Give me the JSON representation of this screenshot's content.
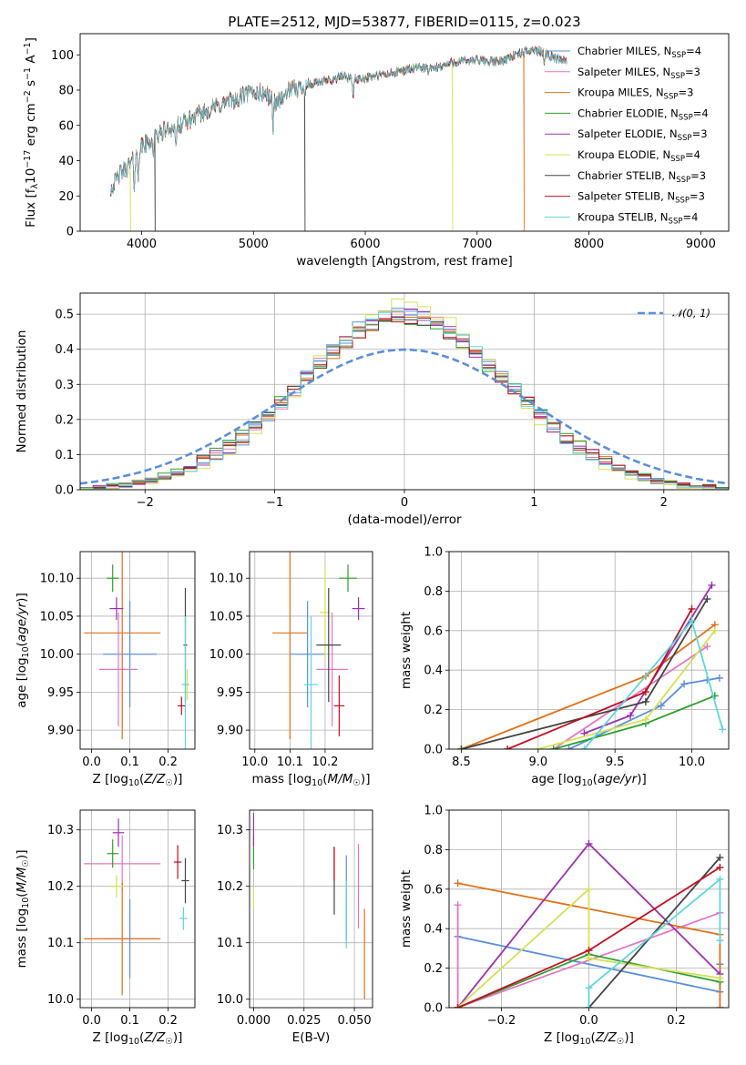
{
  "colors": {
    "Chabrier MILES": "#5b8fdb",
    "Salpeter MILES": "#e377c2",
    "Kroupa MILES": "#e0701a",
    "Chabrier ELODIE": "#2ca02c",
    "Salpeter ELODIE": "#9b30b0",
    "Kroupa ELODIE": "#d4e157",
    "Chabrier STELIB": "#444444",
    "Salpeter STELIB": "#c00f1f",
    "Kroupa STELIB": "#5fd6dc"
  },
  "chart_data": [
    {
      "id": "spectrum",
      "type": "line",
      "title": "PLATE=2512, MJD=53877, FIBERID=0115, z=0.023",
      "xlabel": "wavelength [Angstrom, rest frame]",
      "ylabel": "Flux [f_λ10^-17 erg cm^-2 s^-1 A^-1]",
      "xlim": [
        3450,
        9250
      ],
      "ylim": [
        0,
        112
      ],
      "xticks": [
        4000,
        5000,
        6000,
        7000,
        8000,
        9000
      ],
      "yticks": [
        0,
        20,
        40,
        60,
        80,
        100
      ],
      "grid": false,
      "legend_position": "right",
      "legend": [
        {
          "label": "Chabrier MILES, N",
          "sub": "SSP",
          "suffix": "=4"
        },
        {
          "label": "Salpeter MILES, N",
          "sub": "SSP",
          "suffix": "=3"
        },
        {
          "label": "Kroupa MILES, N",
          "sub": "SSP",
          "suffix": "=3"
        },
        {
          "label": "Chabrier ELODIE, N",
          "sub": "SSP",
          "suffix": "=4"
        },
        {
          "label": "Salpeter ELODIE, N",
          "sub": "SSP",
          "suffix": "=3"
        },
        {
          "label": "Kroupa ELODIE, N",
          "sub": "SSP",
          "suffix": "=4"
        },
        {
          "label": "Chabrier STELIB, N",
          "sub": "SSP",
          "suffix": "=3"
        },
        {
          "label": "Salpeter STELIB, N",
          "sub": "SSP",
          "suffix": "=3"
        },
        {
          "label": "Kroupa STELIB, N",
          "sub": "SSP",
          "suffix": "=4"
        }
      ],
      "continuum_knots": [
        [
          3720,
          24
        ],
        [
          3800,
          32
        ],
        [
          3900,
          38
        ],
        [
          4000,
          48
        ],
        [
          4100,
          52
        ],
        [
          4200,
          57
        ],
        [
          4400,
          62
        ],
        [
          4600,
          69
        ],
        [
          4800,
          74
        ],
        [
          5000,
          79
        ],
        [
          5100,
          78
        ],
        [
          5200,
          73
        ],
        [
          5300,
          79
        ],
        [
          5500,
          83
        ],
        [
          5700,
          86
        ],
        [
          5800,
          88
        ],
        [
          5900,
          86
        ],
        [
          6000,
          87
        ],
        [
          6200,
          89
        ],
        [
          6400,
          92
        ],
        [
          6560,
          93
        ],
        [
          6600,
          92
        ],
        [
          6800,
          96
        ],
        [
          7000,
          97
        ],
        [
          7200,
          96
        ],
        [
          7300,
          99
        ],
        [
          7500,
          103
        ],
        [
          7600,
          101
        ],
        [
          7700,
          98
        ],
        [
          7800,
          97
        ],
        [
          8000,
          95
        ],
        [
          8200,
          94
        ],
        [
          8500,
          93
        ],
        [
          8800,
          92
        ],
        [
          9000,
          91
        ],
        [
          9200,
          90
        ]
      ],
      "absorption_lines": [
        [
          3934,
          16
        ],
        [
          3969,
          14
        ],
        [
          4102,
          8
        ],
        [
          4305,
          12
        ],
        [
          4340,
          8
        ],
        [
          4861,
          6
        ],
        [
          5175,
          14
        ],
        [
          5270,
          5
        ],
        [
          5892,
          10
        ],
        [
          6563,
          4
        ],
        [
          7600,
          4
        ],
        [
          8542,
          4
        ],
        [
          8662,
          4
        ]
      ],
      "masked_spikes": [
        [
          3900,
          "Kroupa ELODIE"
        ],
        [
          4120,
          "Chabrier STELIB"
        ],
        [
          5460,
          "Chabrier STELIB"
        ],
        [
          6780,
          "Kroupa ELODIE"
        ],
        [
          7420,
          "Kroupa MILES"
        ]
      ]
    },
    {
      "id": "residual-hist",
      "type": "step-histogram",
      "xlabel": "(data-model)/error",
      "ylabel": "Normed distribution",
      "xlim": [
        -2.5,
        2.5
      ],
      "ylim": [
        0,
        0.56
      ],
      "xticks": [
        -2,
        -1,
        0,
        1,
        2
      ],
      "yticks": [
        0.0,
        0.1,
        0.2,
        0.3,
        0.4,
        0.5
      ],
      "grid": true,
      "bin_width": 0.1,
      "reference_curve": {
        "label": "𝒩(0, 1)",
        "mean": 0,
        "sigma": 1,
        "color": "#5b8fdb",
        "style": "dashed"
      },
      "legend_position": "top-right",
      "series_peak": [
        {
          "name": "Chabrier MILES",
          "peak": 0.51
        },
        {
          "name": "Salpeter MILES",
          "peak": 0.5
        },
        {
          "name": "Kroupa MILES",
          "peak": 0.49
        },
        {
          "name": "Chabrier ELODIE",
          "peak": 0.48
        },
        {
          "name": "Salpeter ELODIE",
          "peak": 0.5
        },
        {
          "name": "Kroupa ELODIE",
          "peak": 0.53
        },
        {
          "name": "Chabrier STELIB",
          "peak": 0.49
        },
        {
          "name": "Salpeter STELIB",
          "peak": 0.49
        },
        {
          "name": "Kroupa STELIB",
          "peak": 0.5
        }
      ]
    },
    {
      "id": "age-vs-Z",
      "type": "errorbar",
      "xlabel": "Z [log10(Z/Z☉)]",
      "ylabel": "age  [log10(age/yr)]",
      "xlim": [
        -0.03,
        0.27
      ],
      "ylim": [
        9.875,
        10.135
      ],
      "xticks": [
        0.0,
        0.1,
        0.2
      ],
      "yticks": [
        9.9,
        9.95,
        10.0,
        10.05,
        10.1
      ],
      "grid": true,
      "points": [
        {
          "series": "Chabrier MILES",
          "x": 0.1,
          "xerr": 0.07,
          "y": 10.0,
          "yerr": 0.07
        },
        {
          "series": "Salpeter MILES",
          "x": 0.07,
          "xerr": 0.05,
          "y": 9.98,
          "yerr": 0.075
        },
        {
          "series": "Kroupa MILES",
          "x": 0.08,
          "xerr": 0.1,
          "y": 10.028,
          "yerr": 0.14
        },
        {
          "series": "Chabrier ELODIE",
          "x": 0.055,
          "xerr": 0.015,
          "y": 10.1,
          "yerr": 0.018
        },
        {
          "series": "Salpeter ELODIE",
          "x": 0.065,
          "xerr": 0.018,
          "y": 10.06,
          "yerr": 0.015
        },
        {
          "series": "Kroupa ELODIE",
          "x": 0.25,
          "xerr": 0.005,
          "y": 9.96,
          "yerr": 0.02
        },
        {
          "series": "Chabrier STELIB",
          "x": 0.245,
          "xerr": 0.005,
          "y": 10.012,
          "yerr": 0.075
        },
        {
          "series": "Salpeter STELIB",
          "x": 0.235,
          "xerr": 0.01,
          "y": 9.932,
          "yerr": 0.012
        },
        {
          "series": "Kroupa STELIB",
          "x": 0.245,
          "xerr": 0.01,
          "y": 9.96,
          "yerr": 0.09
        }
      ]
    },
    {
      "id": "age-vs-mass",
      "type": "errorbar",
      "xlabel": "mass [log10(M/M☉)]",
      "ylabel": "",
      "xlim": [
        9.985,
        10.335
      ],
      "ylim": [
        9.875,
        10.135
      ],
      "xticks": [
        10.0,
        10.1,
        10.2
      ],
      "yticks": [
        9.9,
        9.95,
        10.0,
        10.05,
        10.1
      ],
      "grid": true,
      "points": [
        {
          "series": "Chabrier MILES",
          "x": 10.15,
          "xerr": 0.05,
          "y": 10.0,
          "yerr": 0.07
        },
        {
          "series": "Salpeter MILES",
          "x": 10.22,
          "xerr": 0.045,
          "y": 9.98,
          "yerr": 0.075
        },
        {
          "series": "Kroupa MILES",
          "x": 10.1,
          "xerr": 0.05,
          "y": 10.028,
          "yerr": 0.14
        },
        {
          "series": "Chabrier ELODIE",
          "x": 10.265,
          "xerr": 0.025,
          "y": 10.1,
          "yerr": 0.018
        },
        {
          "series": "Salpeter ELODIE",
          "x": 10.295,
          "xerr": 0.018,
          "y": 10.06,
          "yerr": 0.015
        },
        {
          "series": "Kroupa ELODIE",
          "x": 10.2,
          "xerr": 0.015,
          "y": 10.055,
          "yerr": 0.06
        },
        {
          "series": "Chabrier STELIB",
          "x": 10.21,
          "xerr": 0.035,
          "y": 10.012,
          "yerr": 0.075
        },
        {
          "series": "Salpeter STELIB",
          "x": 10.24,
          "xerr": 0.015,
          "y": 9.932,
          "yerr": 0.04
        },
        {
          "series": "Kroupa STELIB",
          "x": 10.16,
          "xerr": 0.02,
          "y": 9.96,
          "yerr": 0.09
        }
      ]
    },
    {
      "id": "massweight-vs-age",
      "type": "line",
      "xlabel": "age  [log10(age/yr)]",
      "ylabel": "mass weight",
      "xlim": [
        8.42,
        10.24
      ],
      "ylim": [
        0,
        1
      ],
      "xticks": [
        8.5,
        9.0,
        9.5,
        10.0
      ],
      "yticks": [
        0.0,
        0.2,
        0.4,
        0.6,
        0.8,
        1.0
      ],
      "grid": true,
      "series": [
        {
          "name": "Chabrier MILES",
          "points": [
            [
              9.2,
              0.0
            ],
            [
              9.8,
              0.22
            ],
            [
              9.95,
              0.33
            ],
            [
              10.1,
              0.35
            ],
            [
              10.18,
              0.36
            ]
          ]
        },
        {
          "name": "Salpeter MILES",
          "points": [
            [
              9.1,
              0.0
            ],
            [
              10.1,
              0.52
            ]
          ]
        },
        {
          "name": "Kroupa MILES",
          "points": [
            [
              8.5,
              0.0
            ],
            [
              9.7,
              0.37
            ],
            [
              10.15,
              0.63
            ]
          ]
        },
        {
          "name": "Chabrier ELODIE",
          "points": [
            [
              9.1,
              0.0
            ],
            [
              9.7,
              0.13
            ],
            [
              10.15,
              0.27
            ]
          ]
        },
        {
          "name": "Salpeter ELODIE",
          "points": [
            [
              9.3,
              0.08
            ],
            [
              9.6,
              0.17
            ],
            [
              10.13,
              0.83
            ]
          ]
        },
        {
          "name": "Kroupa ELODIE",
          "points": [
            [
              9.0,
              0.0
            ],
            [
              9.7,
              0.15
            ],
            [
              10.15,
              0.6
            ]
          ]
        },
        {
          "name": "Chabrier STELIB",
          "points": [
            [
              8.5,
              0.0
            ],
            [
              9.7,
              0.24
            ],
            [
              10.1,
              0.76
            ]
          ]
        },
        {
          "name": "Salpeter STELIB",
          "points": [
            [
              8.8,
              0.0
            ],
            [
              9.7,
              0.29
            ],
            [
              10.0,
              0.71
            ]
          ]
        },
        {
          "name": "Kroupa STELIB",
          "points": [
            [
              9.3,
              0.0
            ],
            [
              10.0,
              0.65
            ],
            [
              10.2,
              0.1
            ]
          ]
        }
      ]
    },
    {
      "id": "mass-vs-Z",
      "type": "errorbar",
      "xlabel": "Z [log10(Z/Z☉)]",
      "ylabel": "mass [log10(M/M☉)]",
      "xlim": [
        -0.03,
        0.27
      ],
      "ylim": [
        9.985,
        10.335
      ],
      "xticks": [
        0.0,
        0.1,
        0.2
      ],
      "yticks": [
        10.0,
        10.1,
        10.2,
        10.3
      ],
      "grid": true,
      "points": [
        {
          "series": "Chabrier MILES",
          "x": 0.1,
          "xerr": 0.07,
          "y": 10.107,
          "yerr": 0.07
        },
        {
          "series": "Salpeter MILES",
          "x": 0.08,
          "xerr": 0.1,
          "y": 10.24,
          "yerr": 0.05
        },
        {
          "series": "Kroupa MILES",
          "x": 0.08,
          "xerr": 0.1,
          "y": 10.107,
          "yerr": 0.1
        },
        {
          "series": "Chabrier ELODIE",
          "x": 0.055,
          "xerr": 0.015,
          "y": 10.258,
          "yerr": 0.025
        },
        {
          "series": "Salpeter ELODIE",
          "x": 0.07,
          "xerr": 0.015,
          "y": 10.295,
          "yerr": 0.025
        },
        {
          "series": "Kroupa ELODIE",
          "x": 0.065,
          "xerr": 0.018,
          "y": 10.2,
          "yerr": 0.02
        },
        {
          "series": "Chabrier STELIB",
          "x": 0.245,
          "xerr": 0.01,
          "y": 10.21,
          "yerr": 0.04
        },
        {
          "series": "Salpeter STELIB",
          "x": 0.225,
          "xerr": 0.01,
          "y": 10.243,
          "yerr": 0.03
        },
        {
          "series": "Kroupa STELIB",
          "x": 0.24,
          "xerr": 0.01,
          "y": 10.143,
          "yerr": 0.02
        }
      ]
    },
    {
      "id": "mass-vs-ebv",
      "type": "errorbar",
      "xlabel": "E(B-V)",
      "ylabel": "",
      "xlim": [
        -0.002,
        0.059
      ],
      "ylim": [
        9.985,
        10.335
      ],
      "xticks": [
        0.0,
        0.025,
        0.05
      ],
      "xtick_labels": [
        "0.000",
        "0.025",
        "0.050"
      ],
      "yticks": [
        10.0,
        10.1,
        10.2,
        10.3
      ],
      "grid": true,
      "points": [
        {
          "series": "Chabrier MILES",
          "x": 0.046,
          "xerr": 0,
          "y": 10.18,
          "yerr": 0.075
        },
        {
          "series": "Salpeter MILES",
          "x": 0.052,
          "xerr": 0,
          "y": 10.2,
          "yerr": 0.075
        },
        {
          "series": "Kroupa MILES",
          "x": 0.055,
          "xerr": 0,
          "y": 10.08,
          "yerr": 0.08
        },
        {
          "series": "Chabrier ELODIE",
          "x": 0.0,
          "xerr": 0,
          "y": 10.26,
          "yerr": 0.03
        },
        {
          "series": "Salpeter ELODIE",
          "x": 0.0,
          "xerr": 0,
          "y": 10.3,
          "yerr": 0.03
        },
        {
          "series": "Kroupa ELODIE",
          "x": 0.0,
          "xerr": 0,
          "y": 10.18,
          "yerr": 0.02
        },
        {
          "series": "Chabrier STELIB",
          "x": 0.04,
          "xerr": 0,
          "y": 10.21,
          "yerr": 0.06
        },
        {
          "series": "Salpeter STELIB",
          "x": 0.04,
          "xerr": 0,
          "y": 10.24,
          "yerr": 0.03
        },
        {
          "series": "Kroupa STELIB",
          "x": 0.046,
          "xerr": 0,
          "y": 10.15,
          "yerr": 0.06
        }
      ]
    },
    {
      "id": "massweight-vs-Z",
      "type": "line",
      "xlabel": "Z [log10(Z/Z☉)]",
      "ylabel": "mass weight",
      "xlim": [
        -0.32,
        0.32
      ],
      "ylim": [
        0,
        1
      ],
      "xticks": [
        -0.2,
        0.0,
        0.2
      ],
      "yticks": [
        0.0,
        0.2,
        0.4,
        0.6,
        0.8,
        1.0
      ],
      "grid": true,
      "series": [
        {
          "name": "Chabrier MILES",
          "points": [
            [
              -0.3,
              0.36
            ],
            [
              0.3,
              0.08
            ],
            [
              0.3,
              0.22
            ]
          ]
        },
        {
          "name": "Salpeter MILES",
          "points": [
            [
              -0.3,
              0.52
            ],
            [
              -0.3,
              0.0
            ],
            [
              0.3,
              0.48
            ]
          ]
        },
        {
          "name": "Kroupa MILES",
          "points": [
            [
              -0.3,
              0.63
            ],
            [
              0.3,
              0.37
            ],
            [
              0.3,
              0.0
            ]
          ]
        },
        {
          "name": "Chabrier ELODIE",
          "points": [
            [
              -0.3,
              0.0
            ],
            [
              0.0,
              0.27
            ],
            [
              0.3,
              0.13
            ]
          ]
        },
        {
          "name": "Salpeter ELODIE",
          "points": [
            [
              -0.3,
              0.0
            ],
            [
              0.0,
              0.83
            ],
            [
              0.3,
              0.17
            ]
          ]
        },
        {
          "name": "Kroupa ELODIE",
          "points": [
            [
              -0.3,
              0.0
            ],
            [
              0.0,
              0.6
            ],
            [
              0.0,
              0.25
            ],
            [
              0.3,
              0.15
            ]
          ]
        },
        {
          "name": "Chabrier STELIB",
          "points": [
            [
              0.0,
              0.0
            ],
            [
              0.3,
              0.76
            ]
          ]
        },
        {
          "name": "Salpeter STELIB",
          "points": [
            [
              -0.3,
              0.0
            ],
            [
              0.0,
              0.29
            ],
            [
              0.3,
              0.71
            ]
          ]
        },
        {
          "name": "Kroupa STELIB",
          "points": [
            [
              0.0,
              0.0
            ],
            [
              0.0,
              0.1
            ],
            [
              0.3,
              0.65
            ],
            [
              0.3,
              0.34
            ]
          ]
        }
      ]
    }
  ]
}
